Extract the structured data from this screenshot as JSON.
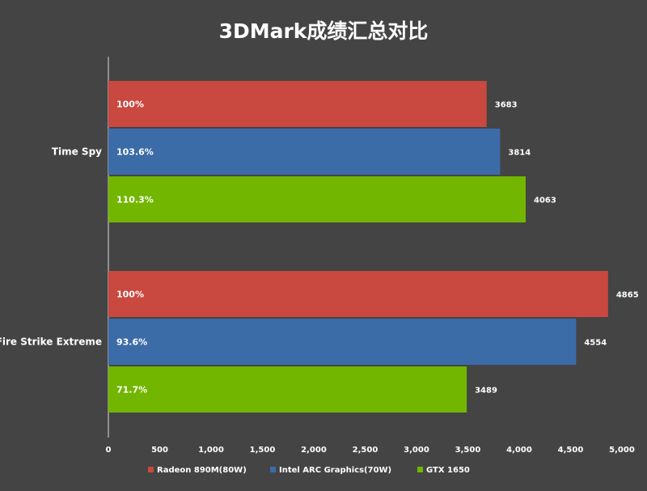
{
  "chart_data": {
    "type": "bar",
    "orientation": "horizontal",
    "title": "3DMark成绩汇总对比",
    "categories": [
      "Time Spy",
      "Fire Strike Extreme"
    ],
    "series": [
      {
        "name": "Radeon 890M(80W)",
        "color": "#C9483F",
        "values": [
          3683,
          4865
        ],
        "percent_labels": [
          "100%",
          "100%"
        ]
      },
      {
        "name": "Intel ARC Graphics(70W)",
        "color": "#3C6CA8",
        "values": [
          3814,
          4554
        ],
        "percent_labels": [
          "103.6%",
          "93.6%"
        ]
      },
      {
        "name": "GTX 1650",
        "color": "#72B600",
        "values": [
          4063,
          3489
        ],
        "percent_labels": [
          "110.3%",
          "71.7%"
        ]
      }
    ],
    "xlim": [
      0,
      5000
    ],
    "xticks": [
      0,
      500,
      1000,
      1500,
      2000,
      2500,
      3000,
      3500,
      4000,
      4500,
      5000
    ],
    "xtick_labels": [
      "0",
      "500",
      "1,000",
      "1,500",
      "2,000",
      "2,500",
      "3,000",
      "3,500",
      "4,000",
      "4,500",
      "5,000"
    ],
    "xlabel": "",
    "ylabel": "",
    "grid": false,
    "legend_position": "bottom"
  }
}
